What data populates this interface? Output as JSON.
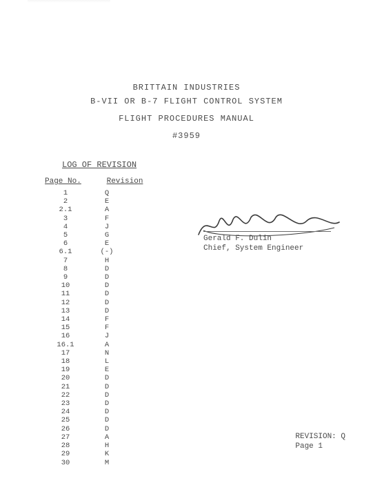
{
  "header": {
    "company": "BRITTAIN  INDUSTRIES",
    "system": "B-VII OR B-7 FLIGHT CONTROL SYSTEM",
    "manual": "FLIGHT PROCEDURES MANUAL",
    "doc_no": "#3959"
  },
  "log": {
    "title": "LOG OF REVISION",
    "headers": {
      "page": "Page No.",
      "rev": "Revision"
    },
    "rows": [
      {
        "page": "1",
        "rev": "Q"
      },
      {
        "page": "2",
        "rev": "E"
      },
      {
        "page": "2.1",
        "rev": "A"
      },
      {
        "page": "3",
        "rev": "F"
      },
      {
        "page": "4",
        "rev": "J"
      },
      {
        "page": "5",
        "rev": "G"
      },
      {
        "page": "6",
        "rev": "E"
      },
      {
        "page": "6.1",
        "rev": "(-)"
      },
      {
        "page": "7",
        "rev": "H"
      },
      {
        "page": "8",
        "rev": "D"
      },
      {
        "page": "9",
        "rev": "D"
      },
      {
        "page": "10",
        "rev": "D"
      },
      {
        "page": "11",
        "rev": "D"
      },
      {
        "page": "12",
        "rev": "D"
      },
      {
        "page": "13",
        "rev": "D"
      },
      {
        "page": "14",
        "rev": "F"
      },
      {
        "page": "15",
        "rev": "F"
      },
      {
        "page": "16",
        "rev": "J"
      },
      {
        "page": "16.1",
        "rev": "A"
      },
      {
        "page": "17",
        "rev": "N"
      },
      {
        "page": "18",
        "rev": "L"
      },
      {
        "page": "19",
        "rev": "E"
      },
      {
        "page": "20",
        "rev": "D"
      },
      {
        "page": "21",
        "rev": "D"
      },
      {
        "page": "22",
        "rev": "D"
      },
      {
        "page": "23",
        "rev": "D"
      },
      {
        "page": "24",
        "rev": "D"
      },
      {
        "page": "25",
        "rev": "D"
      },
      {
        "page": "26",
        "rev": "D"
      },
      {
        "page": "27",
        "rev": "A"
      },
      {
        "page": "28",
        "rev": "H"
      },
      {
        "page": "29",
        "rev": "K"
      },
      {
        "page": "30",
        "rev": "M"
      }
    ]
  },
  "signature": {
    "name": "Gerald F. Dulin",
    "title": "Chief, System Engineer"
  },
  "footer": {
    "revision": "REVISION: Q",
    "page": "Page 1"
  },
  "style": {
    "text_color": "#4a4a4a",
    "background": "#ffffff",
    "font_family": "Courier New",
    "header_fontsize_pt": 9,
    "body_fontsize_pt": 8,
    "signature_stroke": "#3a3a3a"
  }
}
